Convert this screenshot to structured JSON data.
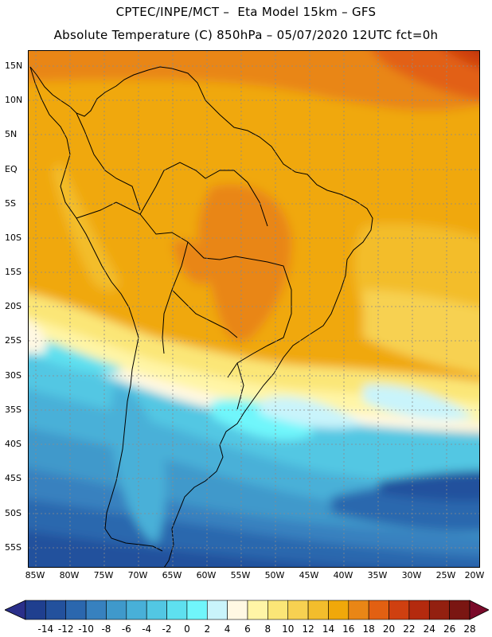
{
  "title_line1": "CPTEC/INPE/MCT –  Eta Model 15km – GFS",
  "title_line2": "Absolute Temperature (C) 850hPa – 05/07/2020 12UTC fct=0h",
  "lat_labels": [
    "15N",
    "10N",
    "5N",
    "EQ",
    "5S",
    "10S",
    "15S",
    "20S",
    "25S",
    "30S",
    "35S",
    "40S",
    "45S",
    "50S",
    "55S"
  ],
  "lon_labels": [
    "85W",
    "80W",
    "75W",
    "70W",
    "65W",
    "60W",
    "55W",
    "50W",
    "45W",
    "40W",
    "35W",
    "30W",
    "25W",
    "20W"
  ],
  "colorbar": {
    "labels": [
      "-14",
      "-12",
      "-10",
      "-8",
      "-6",
      "-4",
      "-2",
      "0",
      "2",
      "4",
      "6",
      "8",
      "10",
      "12",
      "14",
      "16",
      "18",
      "20",
      "22",
      "24",
      "26",
      "28"
    ],
    "under_color": "#2a2f8a",
    "over_color": "#7a0a2a",
    "colors": [
      "#1f3f8f",
      "#23519d",
      "#2b67ae",
      "#3781bf",
      "#3f99cb",
      "#48b0d8",
      "#52c7e3",
      "#5ee0ef",
      "#70f6fb",
      "#c9f4fb",
      "#fff8e3",
      "#fff5a6",
      "#fbe677",
      "#f7d151",
      "#f3bd2c",
      "#f0a80a",
      "#e98616",
      "#e26012",
      "#cf4010",
      "#b42a0e",
      "#932010",
      "#7a1612"
    ]
  },
  "map_region": "South America",
  "grid": "dashed"
}
